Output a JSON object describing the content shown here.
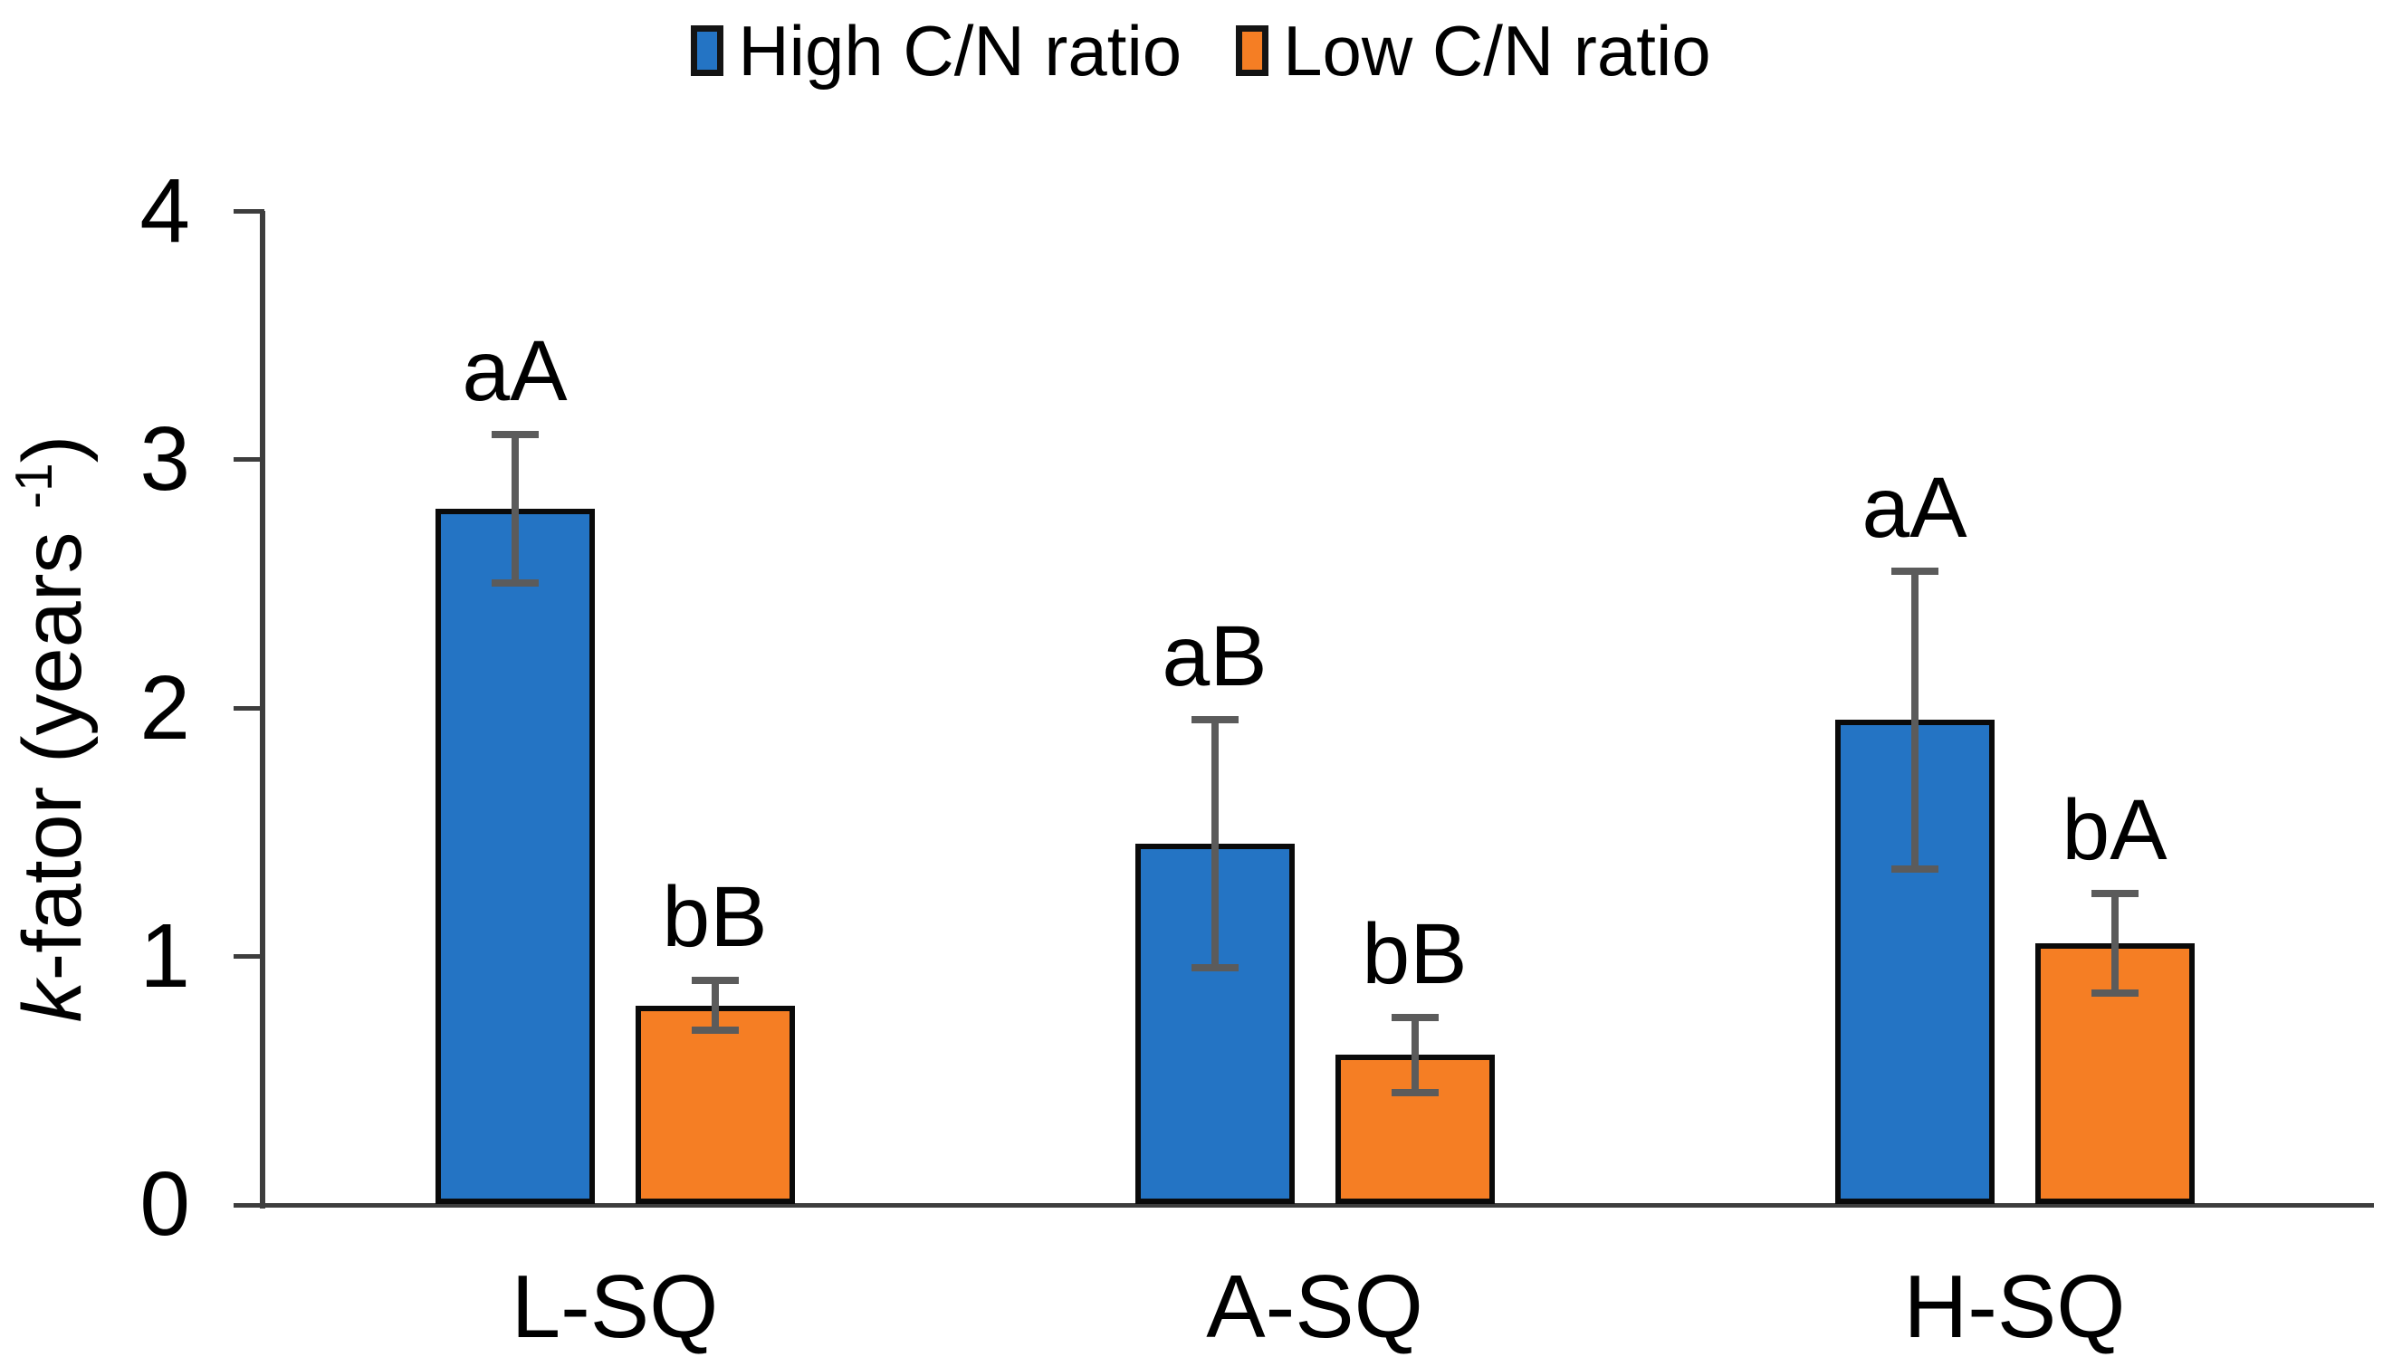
{
  "chart_data": {
    "type": "bar",
    "title": "",
    "categories": [
      "L-SQ",
      "A-SQ",
      "H-SQ"
    ],
    "series": [
      {
        "name": "High C/N ratio",
        "color": "#2474C4",
        "values": [
          2.8,
          1.45,
          1.95
        ],
        "error_bars": [
          0.3,
          0.5,
          0.6
        ],
        "significance_labels": [
          "aA",
          "aB",
          "aA"
        ]
      },
      {
        "name": "Low C/N ratio",
        "color": "#F57E24",
        "values": [
          0.8,
          0.6,
          1.05
        ],
        "error_bars": [
          0.1,
          0.15,
          0.2
        ],
        "significance_labels": [
          "bB",
          "bB",
          "bA"
        ]
      }
    ],
    "ylabel_parts": {
      "italic": "k",
      "text": "-fator (years ",
      "sup": "-1",
      "close": ")"
    },
    "ylim": [
      0,
      4
    ],
    "yticks": [
      "0",
      "1",
      "2",
      "3",
      "4"
    ],
    "xlabel": "",
    "legend_position": "top",
    "grid": false,
    "colors": {
      "axis": "#3d3d3d",
      "error_bar": "#5b5b5b",
      "bar_outline": "#0a0a0a",
      "text": "#000000"
    }
  }
}
